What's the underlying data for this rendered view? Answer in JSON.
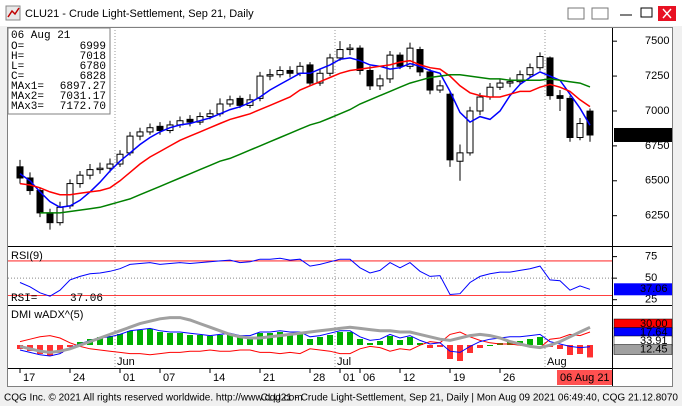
{
  "window": {
    "title": "CLU21 - Crude Light-Settlement, Sep 21, Daily",
    "footer_left": "CQG Inc. © 2021 All rights reserved worldwide. http://www.cqg.com",
    "footer_right": "CLU21 - Crude Light-Settlement, Sep 21, Daily | Mon Aug 09 2021 06:49:40, CQG 21.12.8070"
  },
  "info": {
    "date": "06 Aug 21",
    "labels": [
      "O=",
      "H=",
      "L=",
      "C=",
      "MAx1=",
      "MAx2=",
      "MAx3="
    ],
    "values": [
      "6999",
      "7018",
      "6780",
      "6828",
      "6897.27",
      "7031.17",
      "7172.70"
    ]
  },
  "chart_data": [
    {
      "type": "candlestick",
      "categories": [
        "17",
        null,
        null,
        null,
        null,
        "24",
        null,
        null,
        null,
        null,
        "01",
        null,
        null,
        null,
        "07",
        null,
        null,
        null,
        null,
        "14",
        null,
        null,
        null,
        null,
        "21",
        null,
        null,
        null,
        null,
        "28",
        null,
        null,
        "01",
        null,
        "06",
        null,
        null,
        null,
        "12",
        null,
        null,
        null,
        null,
        "19",
        null,
        null,
        null,
        null,
        "26",
        null,
        null,
        null,
        null,
        null,
        null,
        null,
        null,
        null
      ],
      "month_labels": [
        null,
        null,
        null,
        null,
        null,
        null,
        null,
        null,
        null,
        null,
        "Jun",
        null,
        null,
        null,
        null,
        null,
        null,
        null,
        null,
        null,
        null,
        null,
        null,
        null,
        null,
        null,
        null,
        null,
        null,
        null,
        null,
        null,
        "Jul",
        null,
        null,
        null,
        null,
        null,
        null,
        null,
        null,
        null,
        null,
        null,
        null,
        null,
        null,
        null,
        null,
        null,
        null,
        null,
        null,
        "Aug",
        null,
        null,
        null,
        null
      ],
      "cursor_date": "06 Aug 21",
      "open": [
        6600,
        6520,
        6430,
        6270,
        6200,
        6320,
        6480,
        6540,
        6580,
        6590,
        6620,
        6700,
        6820,
        6850,
        6890,
        6860,
        6900,
        6940,
        6920,
        6960,
        6980,
        7050,
        7090,
        7040,
        7090,
        7250,
        7260,
        7290,
        7270,
        7330,
        7200,
        7270,
        7380,
        7440,
        7450,
        7290,
        7180,
        7230,
        7400,
        7320,
        7440,
        7280,
        7150,
        7120,
        6640,
        6700,
        7000,
        7100,
        7170,
        7200,
        7210,
        7260,
        7310,
        7380,
        7110,
        7090,
        6810,
        6999
      ],
      "high": [
        6650,
        6560,
        6450,
        6300,
        6350,
        6510,
        6570,
        6620,
        6630,
        6660,
        6720,
        6850,
        6880,
        6910,
        6920,
        6930,
        6960,
        6970,
        6990,
        7010,
        7090,
        7110,
        7110,
        7120,
        7280,
        7300,
        7320,
        7320,
        7350,
        7350,
        7300,
        7410,
        7500,
        7480,
        7470,
        7320,
        7260,
        7430,
        7420,
        7490,
        7460,
        7300,
        7220,
        7140,
        6760,
        7030,
        7130,
        7200,
        7230,
        7240,
        7290,
        7340,
        7420,
        7390,
        7150,
        7110,
        6950,
        7018
      ],
      "low": [
        6480,
        6400,
        6240,
        6150,
        6180,
        6300,
        6450,
        6510,
        6550,
        6560,
        6600,
        6680,
        6790,
        6830,
        6830,
        6840,
        6880,
        6890,
        6900,
        6940,
        6960,
        7030,
        7020,
        7020,
        7070,
        7220,
        7240,
        7240,
        7250,
        7180,
        7180,
        7250,
        7360,
        7400,
        7260,
        7150,
        7150,
        7200,
        7300,
        7300,
        7250,
        7120,
        7130,
        6600,
        6500,
        6680,
        6970,
        7080,
        7150,
        7170,
        7190,
        7240,
        7290,
        7080,
        7000,
        6780,
        6790,
        6780
      ],
      "close": [
        6520,
        6430,
        6270,
        6200,
        6310,
        6480,
        6540,
        6580,
        6590,
        6620,
        6690,
        6820,
        6850,
        6880,
        6860,
        6900,
        6930,
        6920,
        6960,
        6980,
        7050,
        7080,
        7040,
        7080,
        7250,
        7260,
        7290,
        7270,
        7320,
        7200,
        7270,
        7380,
        7440,
        7450,
        7290,
        7180,
        7230,
        7400,
        7320,
        7450,
        7280,
        7150,
        7180,
        6650,
        6700,
        7000,
        7100,
        7170,
        7200,
        7210,
        7260,
        7310,
        7390,
        7110,
        7090,
        6810,
        6910,
        6828
      ],
      "series": [
        {
          "color": "#0000ff",
          "values": [
            6550,
            6500,
            6420,
            6350,
            6310,
            6320,
            6360,
            6420,
            6490,
            6570,
            6640,
            6700,
            6760,
            6810,
            6850,
            6880,
            6900,
            6910,
            6930,
            6950,
            6980,
            7010,
            7030,
            7060,
            7100,
            7150,
            7190,
            7230,
            7270,
            7270,
            7300,
            7330,
            7370,
            7380,
            7360,
            7330,
            7320,
            7300,
            7310,
            7340,
            7320,
            7290,
            7270,
            7140,
            6990,
            6920,
            6960,
            6940,
            7000,
            7110,
            7190,
            7240,
            7280,
            7250,
            7220,
            7120,
            7020,
            6897.27
          ]
        },
        {
          "color": "#ff0000",
          "values": [
            6480,
            6470,
            6450,
            6420,
            6400,
            6400,
            6410,
            6420,
            6430,
            6450,
            6500,
            6560,
            6620,
            6670,
            6710,
            6750,
            6790,
            6820,
            6850,
            6880,
            6910,
            6940,
            6960,
            6980,
            7010,
            7040,
            7070,
            7100,
            7150,
            7180,
            7210,
            7240,
            7270,
            7290,
            7300,
            7310,
            7320,
            7330,
            7350,
            7360,
            7330,
            7310,
            7300,
            7250,
            7180,
            7130,
            7110,
            7100,
            7100,
            7120,
            7140,
            7140,
            7170,
            7190,
            7170,
            7140,
            7080,
            7031.17
          ]
        },
        {
          "color": "#008000",
          "values": [
            null,
            null,
            6270,
            6270,
            6270,
            6280,
            6290,
            6300,
            6310,
            6330,
            6350,
            6370,
            6400,
            6430,
            6460,
            6490,
            6520,
            6550,
            6580,
            6610,
            6640,
            6660,
            6690,
            6720,
            6750,
            6780,
            6810,
            6840,
            6870,
            6900,
            6920,
            6950,
            6980,
            7010,
            7050,
            7080,
            7110,
            7140,
            7170,
            7200,
            7220,
            7240,
            7250,
            7260,
            7260,
            7250,
            7240,
            7230,
            7230,
            7220,
            7220,
            7220,
            7220,
            7230,
            7220,
            7210,
            7200,
            7172.7
          ]
        }
      ],
      "ylim": [
        6040,
        7580
      ],
      "yticks": [
        6250,
        6500,
        6750,
        7000,
        7250,
        7500
      ]
    },
    {
      "type": "line",
      "title": "RSI(9)",
      "readout_label": "RSI=",
      "color": "#0000ff",
      "values": [
        45,
        40,
        33,
        29,
        36,
        48,
        52,
        55,
        56,
        58,
        61,
        66,
        67,
        68,
        66,
        67,
        68,
        67,
        68,
        69,
        70,
        71,
        68,
        69,
        72,
        72,
        73,
        71,
        72,
        64,
        66,
        69,
        72,
        72,
        62,
        56,
        59,
        68,
        62,
        68,
        58,
        52,
        53,
        31,
        32,
        45,
        52,
        55,
        57,
        57,
        59,
        61,
        64,
        48,
        47,
        36,
        41,
        37.06
      ],
      "levels": [
        70,
        30
      ],
      "level_color": "#ff0000",
      "ylim": [
        20,
        85
      ],
      "yticks": [
        25,
        50,
        75
      ]
    },
    {
      "type": "dmi",
      "title": "DMI wADX^(5)",
      "histogram": [
        -4,
        -6,
        -9,
        -11,
        -8,
        -2,
        3,
        6,
        8,
        9,
        11,
        14,
        15,
        16,
        13,
        12,
        12,
        10,
        10,
        9,
        10,
        11,
        8,
        8,
        12,
        12,
        13,
        11,
        12,
        6,
        8,
        10,
        13,
        13,
        6,
        2,
        4,
        9,
        5,
        8,
        2,
        -3,
        -2,
        -14,
        -16,
        -8,
        -3,
        0,
        2,
        3,
        4,
        6,
        8,
        -2,
        -4,
        -10,
        -9,
        -12.45
      ],
      "up_color": "#00b000",
      "down_color": "#ff3030",
      "series": [
        {
          "color": "#ff0000",
          "values": [
            22,
            24,
            26,
            27,
            25,
            21,
            18,
            16,
            15,
            14,
            13,
            12,
            12,
            11,
            12,
            13,
            13,
            14,
            14,
            15,
            14,
            14,
            15,
            15,
            13,
            13,
            12,
            13,
            12,
            16,
            15,
            14,
            12,
            12,
            16,
            18,
            17,
            14,
            16,
            15,
            19,
            22,
            21,
            28,
            30,
            26,
            23,
            21,
            20,
            20,
            19,
            18,
            17,
            24,
            25,
            28,
            27,
            30.0
          ]
        },
        {
          "color": "#0000ff",
          "values": [
            15,
            13,
            11,
            10,
            12,
            17,
            20,
            23,
            25,
            26,
            28,
            31,
            32,
            33,
            31,
            30,
            30,
            29,
            28,
            27,
            28,
            29,
            27,
            27,
            30,
            30,
            31,
            30,
            30,
            26,
            27,
            29,
            31,
            31,
            26,
            23,
            24,
            28,
            25,
            27,
            23,
            20,
            21,
            14,
            13,
            18,
            22,
            24,
            25,
            26,
            26,
            27,
            28,
            22,
            20,
            18,
            17,
            17.64
          ]
        },
        {
          "color": "#a0a0a0",
          "values": [
            18,
            16,
            14,
            13,
            14,
            16,
            19,
            22,
            25,
            28,
            31,
            34,
            37,
            39,
            41,
            42,
            42,
            40,
            37,
            34,
            31,
            28,
            26,
            25,
            25,
            26,
            27,
            28,
            29,
            30,
            31,
            32,
            33,
            34,
            33,
            32,
            31,
            31,
            30,
            30,
            28,
            26,
            24,
            23,
            25,
            27,
            28,
            27,
            25,
            22,
            20,
            18,
            17,
            19,
            22,
            26,
            30,
            33.91
          ]
        }
      ],
      "readouts": [
        "30.00",
        "17.64",
        "33.91",
        "12.45"
      ],
      "readout_colors": [
        "#ff0000",
        "#0000ff",
        "#ffffff",
        "#a0a0a0"
      ],
      "ylim": [
        0,
        50
      ],
      "hist_lim": [
        -20,
        20
      ]
    }
  ]
}
